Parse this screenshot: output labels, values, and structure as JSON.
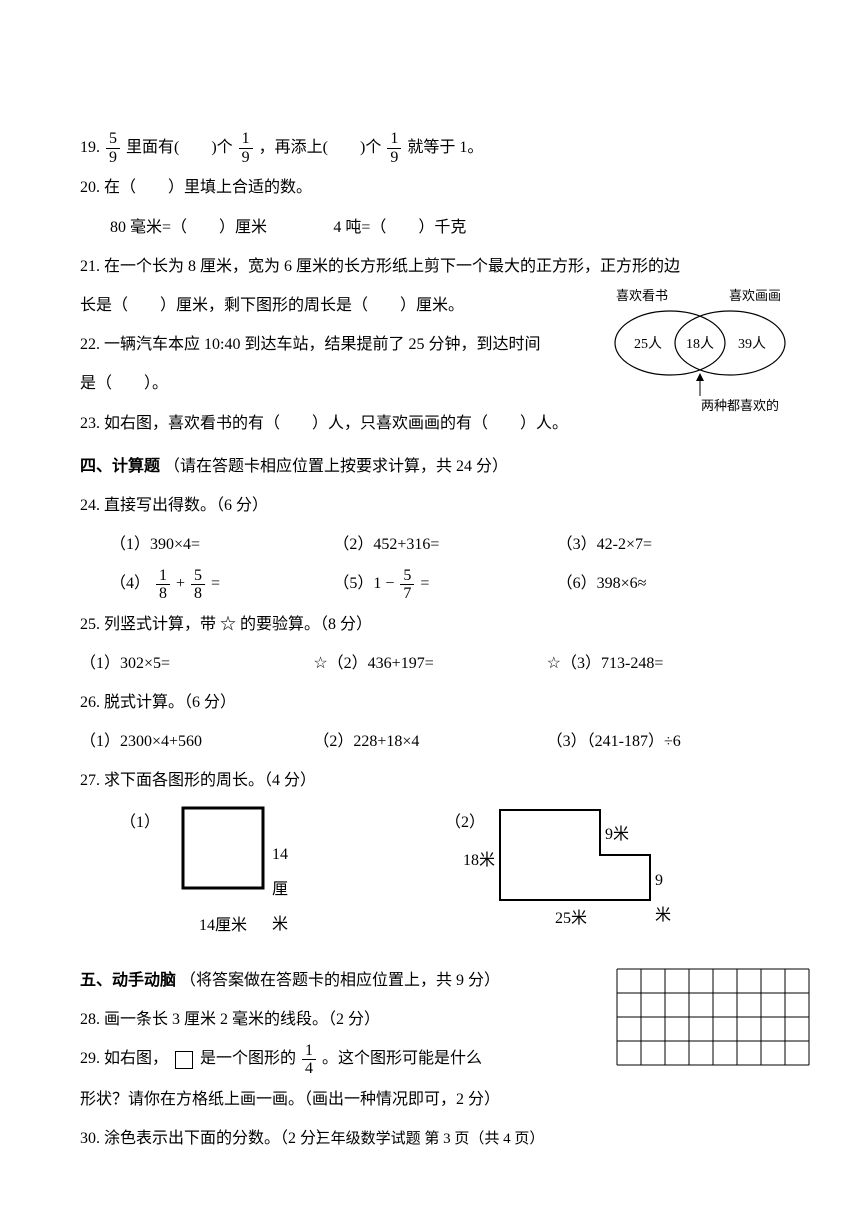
{
  "q19": {
    "num": "19.",
    "f1n": "5",
    "f1d": "9",
    "t1": " 里面有(　　)个",
    "f2n": "1",
    "f2d": "9",
    "t2": "，再添上(　　)个",
    "f3n": "1",
    "f3d": "9",
    "t3": "就等于 1。"
  },
  "q20": {
    "num": "20.",
    "t1": "在（　　）里填上合适的数。",
    "l2a": "80 毫米=（　　）厘米",
    "l2b": "4 吨=（　　）千克"
  },
  "q21": {
    "t1": "21. 在一个长为 8 厘米，宽为 6 厘米的长方形纸上剪下一个最大的正方形，正方形的边",
    "t2": "长是（　　）厘米，剩下图形的周长是（　　）厘米。"
  },
  "q22": {
    "t1": "22. 一辆汽车本应 10:40 到达车站，结果提前了 25 分钟，到达时间",
    "t2": "是（　　）。"
  },
  "q23": {
    "t": "23. 如右图，喜欢看书的有（　　）人，只喜欢画画的有（　　）人。"
  },
  "venn": {
    "left_label": "喜欢看书",
    "right_label": "喜欢画画",
    "left_val": "25人",
    "mid_val": "18人",
    "right_val": "39人",
    "bottom": "两种都喜欢的"
  },
  "s4": {
    "title": "四、计算题",
    "note": "（请在答题卡相应位置上按要求计算，共 24 分）"
  },
  "q24": {
    "t": "24. 直接写出得数。（6 分）",
    "c1": "（1）390×4=",
    "c2": "（2）452+316=",
    "c3": "（3）42-2×7=",
    "c4a": "（4）",
    "c4f1n": "1",
    "c4f1d": "8",
    "c4plus": " + ",
    "c4f2n": "5",
    "c4f2d": "8",
    "c4eq": " =",
    "c5a": "（5）1 − ",
    "c5fn": "5",
    "c5fd": "7",
    "c5eq": " =",
    "c6": "（6）398×6≈"
  },
  "q25": {
    "t": "25. 列竖式计算，带 ☆ 的要验算。（8 分）",
    "c1": "（1）302×5=",
    "c2": "☆（2）436+197=",
    "c3": "☆（3）713-248="
  },
  "q26": {
    "t": "26. 脱式计算。（6 分）",
    "c1": "（1）2300×4+560",
    "c2": "（2）228+18×4",
    "c3": "（3）（241-187）÷6"
  },
  "q27": {
    "t": "27. 求下面各图形的周长。（4 分）",
    "f1_label": "（1）",
    "f1_side": "14厘米",
    "f1_bottom": "14厘米",
    "f2_label": "（2）",
    "f2_left": "18米",
    "f2_right_top": "9米",
    "f2_right_mid": "9米",
    "f2_bottom": "25米"
  },
  "s5": {
    "title": "五、动手动脑",
    "note": "（将答案做在答题卡的相应位置上，共 9 分）"
  },
  "q28": {
    "t": "28. 画一条长 3 厘米 2 毫米的线段。（2 分）"
  },
  "q29": {
    "t1": "29. 如右图，",
    "t2": " 是一个图形的",
    "fn": "1",
    "fd": "4",
    "t3": "。这个图形可能是什么",
    "t4": "形状？请你在方格纸上画一画。（画出一种情况即可，2 分）"
  },
  "q30": {
    "t": "30. 涂色表示出下面的分数。（2 分）"
  },
  "footer": "三年级数学试题  第 3 页（共 4 页）",
  "grid": {
    "cols": 8,
    "rows": 4,
    "cell": 24,
    "stroke": "#000000"
  },
  "square": {
    "size": 80,
    "stroke": "#000000",
    "stroke_width": 3
  },
  "lshape": {
    "w": 150,
    "h": 90,
    "notch_w": 50,
    "notch_h": 45,
    "stroke": "#000000",
    "stroke_width": 2
  }
}
